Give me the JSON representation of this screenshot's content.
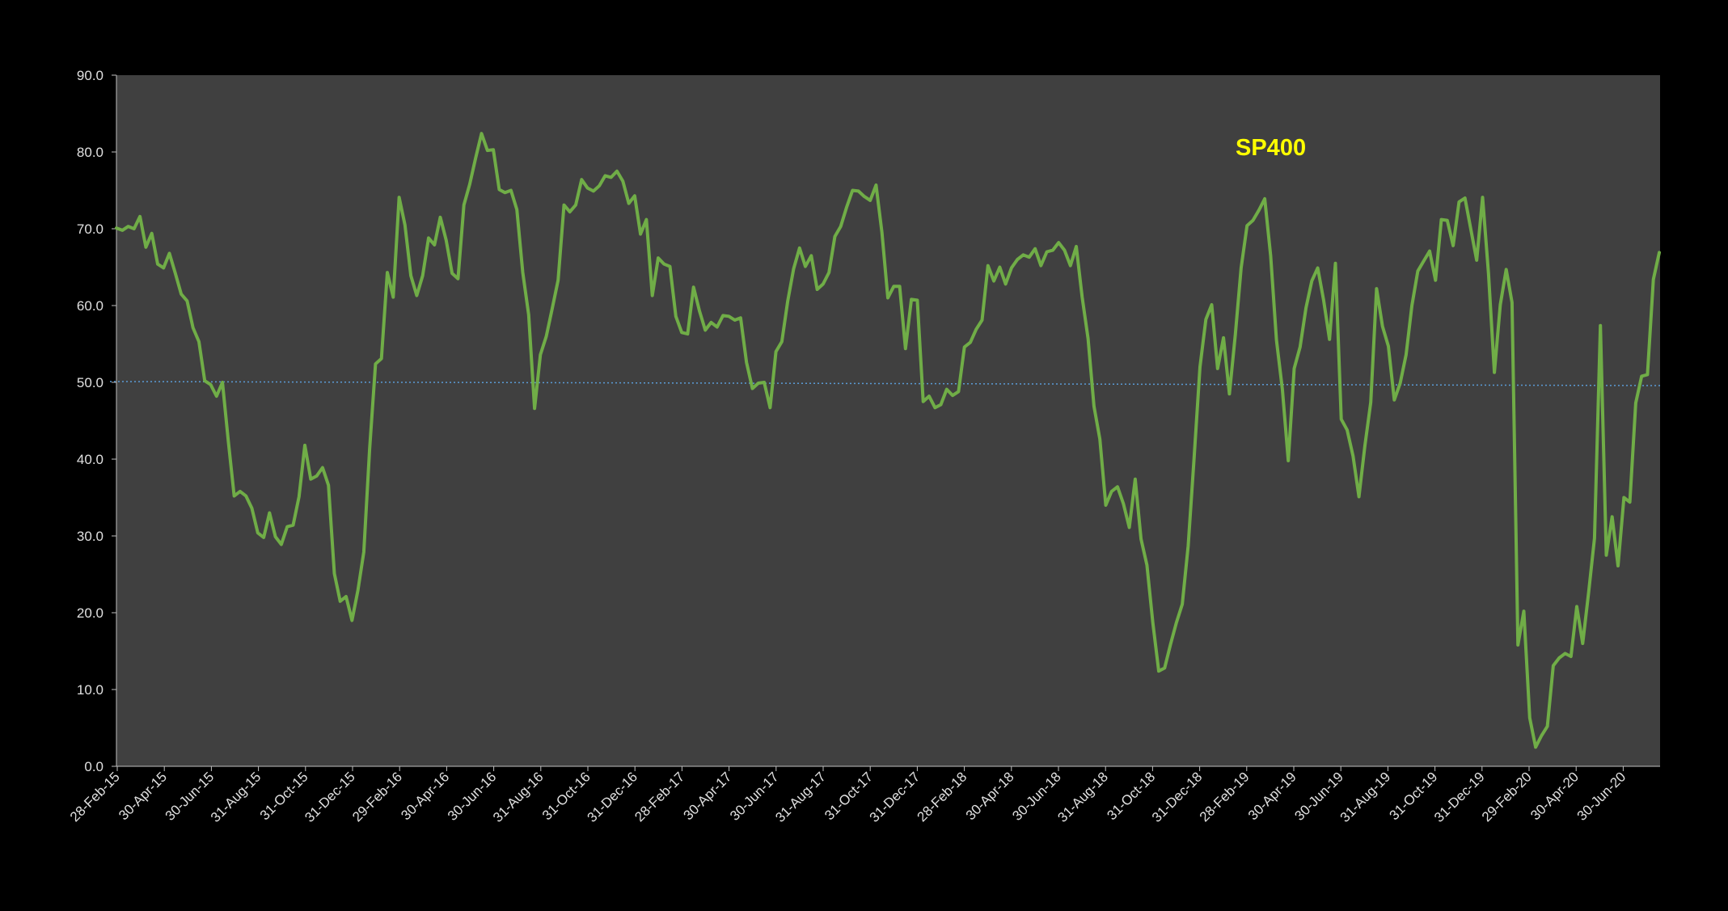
{
  "chart_data": {
    "type": "line",
    "title": "SP400",
    "ylim": [
      0,
      90
    ],
    "yticks": [
      "0.0",
      "10.0",
      "20.0",
      "30.0",
      "40.0",
      "50.0",
      "60.0",
      "70.0",
      "80.0",
      "90.0"
    ],
    "xticks": [
      "28-Feb-15",
      "30-Apr-15",
      "30-Jun-15",
      "31-Aug-15",
      "31-Oct-15",
      "31-Dec-15",
      "29-Feb-16",
      "30-Apr-16",
      "30-Jun-16",
      "31-Aug-16",
      "31-Oct-16",
      "31-Dec-16",
      "28-Feb-17",
      "30-Apr-17",
      "30-Jun-17",
      "31-Aug-17",
      "31-Oct-17",
      "31-Dec-17",
      "28-Feb-18",
      "30-Apr-18",
      "30-Jun-18",
      "31-Aug-18",
      "31-Oct-18",
      "31-Dec-18",
      "28-Feb-19",
      "30-Apr-19",
      "30-Jun-19",
      "31-Aug-19",
      "31-Oct-19",
      "31-Dec-19",
      "29-Feb-20",
      "30-Apr-20",
      "30-Jun-20"
    ],
    "x_start": "2015-02-28",
    "x_end": "2020-08-31",
    "grid": false,
    "reference_line": 50,
    "colors": {
      "background": "#000000",
      "plot_area": "#404040",
      "line": "#70ad47",
      "reference": "#5b9bd5",
      "title": "#ffff00",
      "text": "#e0e0e0"
    },
    "series": [
      {
        "values": [
          70.1,
          69.8,
          70.3,
          70.0,
          71.6,
          67.6,
          69.4,
          65.4,
          64.9,
          66.8,
          64.2,
          61.5,
          60.6,
          57.1,
          55.3,
          50.2,
          49.7,
          48.2,
          50.0,
          42.3,
          35.2,
          35.8,
          35.2,
          33.6,
          30.4,
          29.8,
          33.0,
          29.9,
          28.9,
          31.2,
          31.4,
          35.1,
          41.8,
          37.4,
          37.8,
          38.9,
          36.6,
          25.1,
          21.5,
          22.1,
          19.0,
          22.9,
          27.9,
          41.3,
          52.4,
          53.1,
          64.3,
          61.1,
          74.1,
          70.5,
          63.9,
          61.3,
          63.9,
          68.8,
          67.9,
          71.5,
          68.5,
          64.2,
          63.5,
          73.1,
          75.8,
          79.2,
          82.4,
          80.2,
          80.3,
          75.1,
          74.7,
          75.0,
          72.5,
          64.3,
          58.8,
          46.6,
          53.6,
          56.0,
          59.6,
          63.3,
          73.1,
          72.2,
          73.1,
          76.4,
          75.3,
          74.9,
          75.6,
          76.9,
          76.7,
          77.5,
          76.2,
          73.3,
          74.3,
          69.3,
          71.2,
          61.3,
          66.2,
          65.4,
          65.1,
          58.6,
          56.5,
          56.3,
          62.4,
          59.3,
          56.8,
          57.8,
          57.2,
          58.7,
          58.6,
          58.1,
          58.4,
          52.6,
          49.2,
          49.9,
          50.0,
          46.7,
          54.0,
          55.3,
          60.6,
          64.8,
          67.5,
          65.1,
          66.5,
          62.1,
          62.8,
          64.3,
          69.0,
          70.3,
          72.8,
          75.0,
          74.9,
          74.2,
          73.7,
          75.7,
          69.5,
          61.0,
          62.5,
          62.5,
          54.4,
          60.8,
          60.7,
          47.5,
          48.2,
          46.7,
          47.1,
          49.1,
          48.3,
          48.8,
          54.6,
          55.2,
          56.9,
          58.1,
          65.2,
          63.2,
          65.0,
          62.8,
          64.9,
          66.0,
          66.6,
          66.3,
          67.4,
          65.2,
          67.0,
          67.2,
          68.2,
          67.2,
          65.2,
          67.7,
          61.1,
          55.7,
          46.9,
          42.6,
          34.0,
          35.8,
          36.4,
          34.2,
          31.1,
          37.4,
          29.6,
          26.2,
          18.7,
          12.4,
          12.8,
          15.9,
          18.7,
          21.1,
          28.7,
          40.1,
          52.0,
          58.2,
          60.1,
          51.8,
          55.8,
          48.5,
          56.2,
          64.9,
          70.4,
          71.1,
          72.4,
          73.9,
          66.5,
          55.5,
          49.1,
          39.8,
          51.8,
          54.6,
          59.7,
          63.2,
          64.9,
          60.7,
          55.6,
          65.5,
          45.2,
          43.8,
          40.4,
          35.1,
          41.7,
          47.4,
          62.2,
          57.3,
          54.7,
          47.7,
          49.9,
          53.6,
          60.0,
          64.5,
          65.8,
          67.1,
          63.3,
          71.2,
          71.1,
          67.8,
          73.5,
          74.0,
          69.9,
          65.9,
          74.1,
          64.2,
          51.3,
          60.1,
          64.7,
          60.4,
          15.8,
          20.2,
          6.3,
          2.5,
          4.0,
          5.2,
          13.1,
          14.1,
          14.7,
          14.3,
          20.8,
          16.0,
          22.6,
          29.7,
          57.4,
          27.5,
          32.5,
          26.1,
          35.0,
          34.4,
          47.3,
          50.8,
          51.0,
          63.4,
          66.9
        ]
      }
    ]
  }
}
